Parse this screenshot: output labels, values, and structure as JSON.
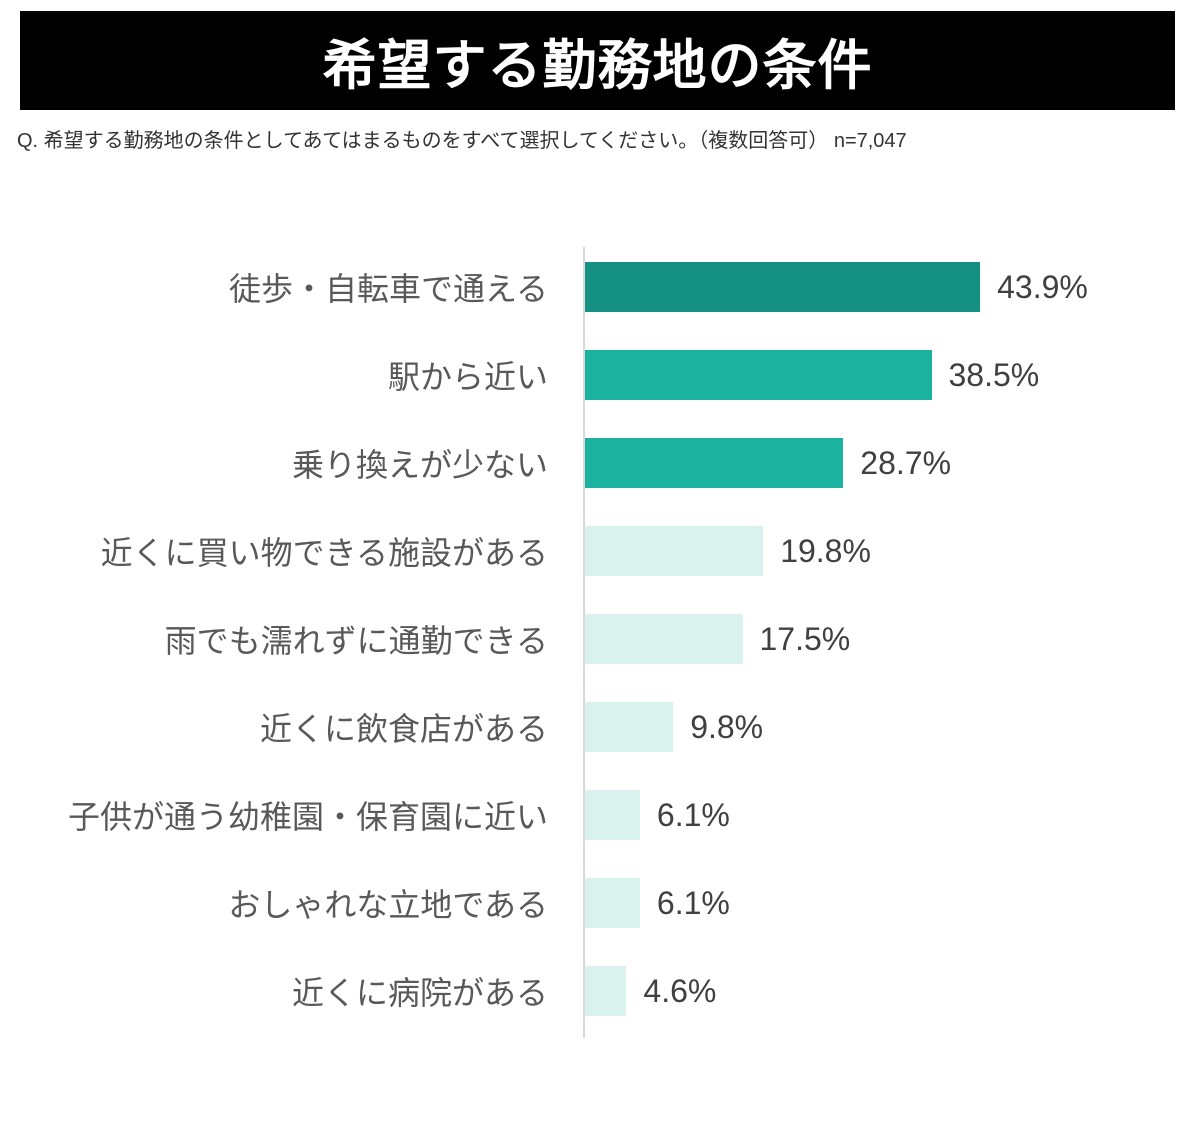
{
  "header": {
    "title": "希望する勤務地の条件",
    "subtitle": "Q. 希望する勤務地の条件としてあてはまるものをすべて選択してください。（複数回答可） n=7,047",
    "sample_size": "n=7,047"
  },
  "colors": {
    "banner_bg": "#000000",
    "banner_text": "#ffffff",
    "bar_dark": "#159184",
    "bar_medium": "#1cb2a0",
    "bar_light": "#d9f2ee",
    "axis_line": "#d9d9d9",
    "category_text": "#595959",
    "value_text": "#404040",
    "subtitle_text": "#333333",
    "background": "#ffffff"
  },
  "chart_data": {
    "type": "bar",
    "orientation": "horizontal",
    "title": "希望する勤務地の条件",
    "categories": [
      "徒歩・自転車で通える",
      "駅から近い",
      "乗り換えが少ない",
      "近くに買い物できる施設がある",
      "雨でも濡れずに通勤できる",
      "近くに飲食店がある",
      "子供が通う幼稚園・保育園に近い",
      "おしゃれな立地である",
      "近くに病院がある"
    ],
    "values": [
      43.9,
      38.5,
      28.7,
      19.8,
      17.5,
      9.8,
      6.1,
      6.1,
      4.6
    ],
    "value_labels": [
      "43.9%",
      "38.5%",
      "28.7%",
      "19.8%",
      "17.5%",
      "9.8%",
      "6.1%",
      "6.1%",
      "4.6%"
    ],
    "bar_colors": [
      "dark",
      "medium",
      "medium",
      "light",
      "light",
      "light",
      "light",
      "light",
      "light"
    ],
    "xlabel": "",
    "ylabel": "",
    "xlim": [
      0,
      50
    ],
    "grid": false,
    "legend": false,
    "data_labels": "outside-end"
  }
}
